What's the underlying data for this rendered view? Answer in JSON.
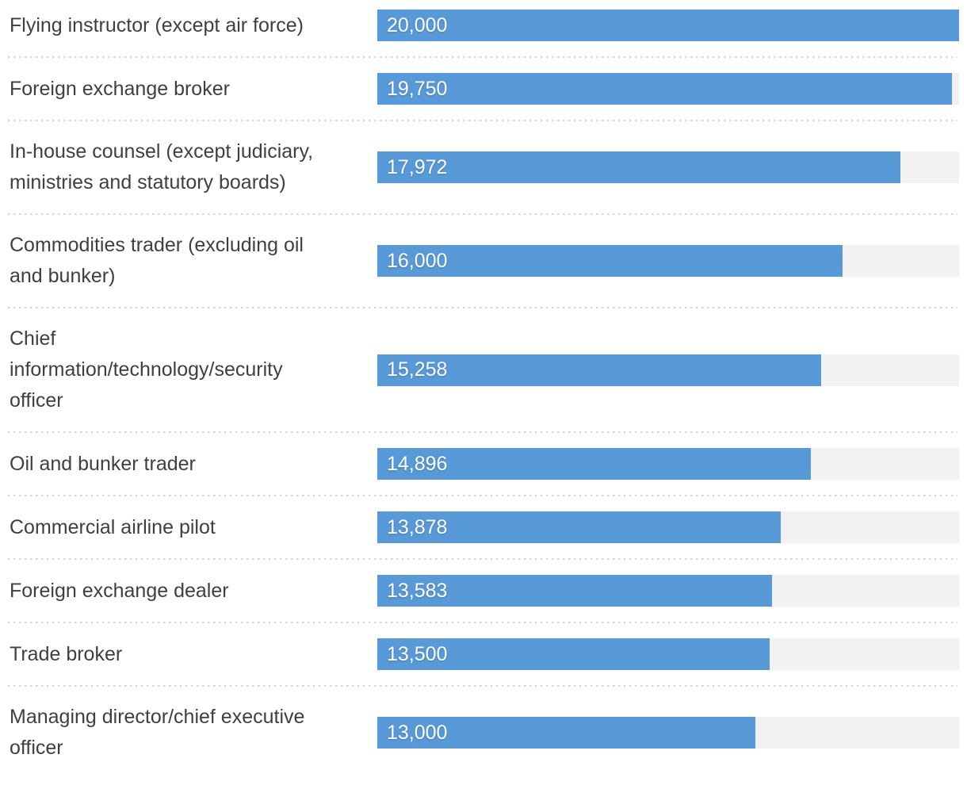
{
  "chart_data": {
    "type": "bar",
    "orientation": "horizontal",
    "title": "",
    "xlabel": "",
    "ylabel": "",
    "legend": "none",
    "grid": "off",
    "xlim": [
      0,
      20000
    ],
    "categories": [
      "Flying instructor (except air force)",
      "Foreign exchange broker",
      "In-house counsel (except judiciary,\nministries and statutory boards)",
      "Commodities trader (excluding oil\nand bunker)",
      "Chief\ninformation/technology/security\nofficer",
      "Oil and bunker trader",
      "Commercial airline pilot",
      "Foreign exchange dealer",
      "Trade broker",
      "Managing director/chief executive\nofficer"
    ],
    "values": [
      20000,
      19750,
      17972,
      16000,
      15258,
      14896,
      13878,
      13583,
      13500,
      13000
    ],
    "value_labels": [
      "20,000",
      "19,750",
      "17,972",
      "16,000",
      "15,258",
      "14,896",
      "13,878",
      "13,583",
      "13,500",
      "13,000"
    ],
    "colors": {
      "bar": "#5899d8",
      "track": "#f2f2f2",
      "category_text": "#3f3f3f",
      "value_text": "#ffffff",
      "separator": "#d5d5d5",
      "background": "#ffffff"
    }
  }
}
